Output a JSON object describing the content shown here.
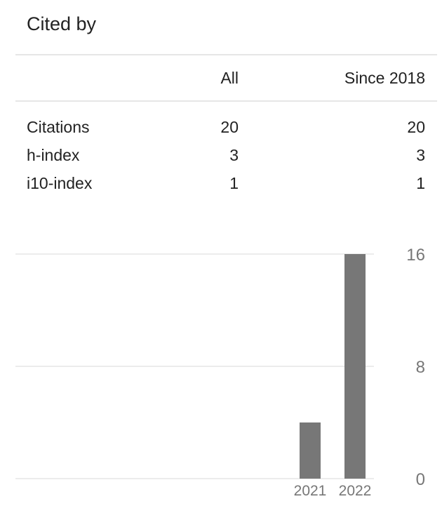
{
  "title": "Cited by",
  "table": {
    "headers": [
      "All",
      "Since 2018"
    ],
    "rows": [
      {
        "label": "Citations",
        "all": "20",
        "since": "20"
      },
      {
        "label": "h-index",
        "all": "3",
        "since": "3"
      },
      {
        "label": "i10-index",
        "all": "1",
        "since": "1"
      }
    ]
  },
  "chart_data": {
    "type": "bar",
    "categories": [
      "2021",
      "2022"
    ],
    "values": [
      4,
      16
    ],
    "ylim": [
      0,
      16
    ],
    "yticks": [
      "0",
      "8",
      "16"
    ],
    "grid": true,
    "bar_color": "#777777"
  }
}
